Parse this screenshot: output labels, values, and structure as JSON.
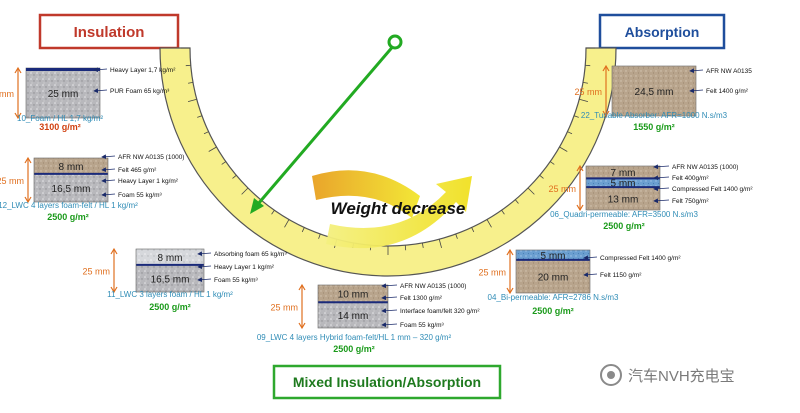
{
  "headings": {
    "insulation": "Insulation",
    "absorption": "Absorption",
    "mixed": "Mixed Insulation/Absorption",
    "weight_decrease": "Weight decrease"
  },
  "colors": {
    "insulation_border": "#c0392b",
    "absorption_border": "#1f4e9c",
    "mixed_border": "#2ea82e",
    "arc_fill": "#f7f08c",
    "pointer": "#22aa22",
    "dim_arrow": "#e07020",
    "caption": "#2f8cb6",
    "weight": "#1a9a1a"
  },
  "samples": [
    {
      "id": "foam-hl",
      "thickness": "25 mm",
      "layers": [
        {
          "label": "25 mm",
          "type": "foam"
        }
      ],
      "annotations": [
        "Heavy Layer 1,7 kg/m²",
        "PUR Foam 65 kg/m³"
      ],
      "caption": "10_Foam / HL 1,7 kg/m²",
      "weight": "3100 g/m²"
    },
    {
      "id": "lwc4",
      "thickness": "25 mm",
      "layers": [
        {
          "label": "8 mm",
          "type": "felt"
        },
        {
          "label": "16,5 mm",
          "type": "foam"
        }
      ],
      "annotations": [
        "AFR NW A0135 (1000)",
        "Felt 465 g/m²",
        "Heavy Layer 1 kg/m²",
        "Foam 55 kg/m³"
      ],
      "caption": "12_LWC 4 layers foam-felt / HL 1 kg/m²",
      "weight": "2500 g/m²"
    },
    {
      "id": "lwc3",
      "thickness": "25 mm",
      "layers": [
        {
          "label": "8 mm",
          "type": "lightfoam"
        },
        {
          "label": "16,5 mm",
          "type": "foam"
        }
      ],
      "annotations": [
        "Absorbing foam 65 kg/m³",
        "Heavy Layer 1 kg/m²",
        "Foam 55 kg/m³"
      ],
      "caption": "11_LWC 3 layers foam / HL 1 kg/m²",
      "weight": "2500 g/m²"
    },
    {
      "id": "hybrid",
      "thickness": "25 mm",
      "layers": [
        {
          "label": "10 mm",
          "type": "felt"
        },
        {
          "label": "14 mm",
          "type": "foam"
        }
      ],
      "annotations": [
        "AFR NW A0135 (1000)",
        "Felt 1300 g/m²",
        "Interface foam/felt 320 g/m²",
        "Foam 55 kg/m³"
      ],
      "caption": "09_LWC 4 layers Hybrid foam-felt/HL 1 mm – 320 g/m²",
      "weight": "2500 g/m²"
    },
    {
      "id": "bi-perm",
      "thickness": "25 mm",
      "layers": [
        {
          "label": "5 mm",
          "type": "compressed"
        },
        {
          "label": "20 mm",
          "type": "felt"
        }
      ],
      "annotations": [
        "Compressed Felt 1400 g/m²",
        "Felt 1150 g/m²"
      ],
      "caption": "04_Bi-permeable: AFR=2786 N.s/m3",
      "weight": "2500 g/m²"
    },
    {
      "id": "quadri",
      "thickness": "25 mm",
      "layers": [
        {
          "label": "7 mm",
          "type": "felt"
        },
        {
          "label": "5 mm",
          "type": "compressed"
        },
        {
          "label": "13 mm",
          "type": "felt"
        }
      ],
      "annotations": [
        "AFR NW A0135 (1000)",
        "Felt 400g/m²",
        "Compressed Felt 1400 g/m²",
        "Felt 750g/m²"
      ],
      "caption": "06_Quadri-permeable: AFR=3500 N.s/m3",
      "weight": "2500 g/m²"
    },
    {
      "id": "tunable",
      "thickness": "25 mm",
      "layers": [
        {
          "label": "24,5 mm",
          "type": "felt"
        }
      ],
      "annotations": [
        "AFR NW A0135",
        "Felt 1400 g/m²"
      ],
      "caption": "22_Tunable Absorber: AFR=1000 N.s/m3",
      "weight": "1550 g/m²"
    }
  ],
  "watermark": "汽车NVH充电宝"
}
